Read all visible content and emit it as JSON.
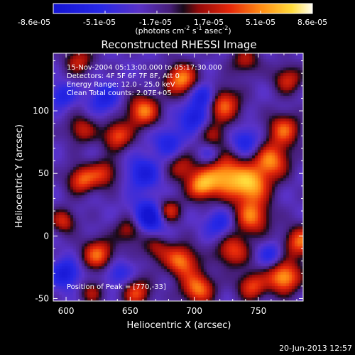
{
  "chart_data": {
    "type": "heatmap",
    "title": "Reconstructed RHESSI Image",
    "xlabel": "Heliocentric X (arcsec)",
    "ylabel": "Heliocentric Y (arcsec)",
    "xlim": [
      590,
      785
    ],
    "ylim": [
      -52,
      146
    ],
    "x_ticks": [
      600,
      650,
      700,
      750
    ],
    "y_ticks": [
      -50,
      0,
      50,
      100
    ],
    "colorbar": {
      "ticks": [
        "-8.6e-05",
        "-5.1e-05",
        "-1.7e-05",
        "1.7e-05",
        "5.1e-05",
        "8.6e-05"
      ],
      "range": [
        -8.6e-05,
        8.6e-05
      ],
      "units": "(photons cm^-2 s^-1 asec^-2)",
      "units_base": "(photons cm",
      "units_exp1": "-2",
      "units_mid": " s",
      "units_exp2": "-1",
      "units_mid2": " asec",
      "units_exp3": "-2",
      "units_end": ")"
    },
    "annotations": [
      "15-Nov-2004 05:13:00.000 to 05:17:30.000",
      "Detectors: 4F 5F 6F 7F 8F, Att 0",
      "Energy Range: 12.0 - 25.0 keV",
      "Clean     Total counts: 2.07E+05"
    ],
    "peak_label": "Position of Peak = [770,-33]",
    "peak_position": [
      770,
      -33
    ],
    "blobs": [
      {
        "x": 770,
        "y": -33,
        "v": 1.0,
        "s": 9
      },
      {
        "x": 783,
        "y": -5,
        "v": 0.8,
        "s": 9
      },
      {
        "x": 745,
        "y": 15,
        "v": 0.8,
        "s": 10
      },
      {
        "x": 724,
        "y": 48,
        "v": 0.95,
        "s": 12
      },
      {
        "x": 745,
        "y": 40,
        "v": 0.85,
        "s": 10
      },
      {
        "x": 705,
        "y": 40,
        "v": 0.8,
        "s": 8
      },
      {
        "x": 690,
        "y": 55,
        "v": 0.5,
        "s": 8
      },
      {
        "x": 760,
        "y": 60,
        "v": 0.85,
        "s": 10
      },
      {
        "x": 770,
        "y": 85,
        "v": 0.75,
        "s": 9
      },
      {
        "x": 722,
        "y": 105,
        "v": 0.8,
        "s": 10
      },
      {
        "x": 715,
        "y": 80,
        "v": 0.4,
        "s": 8
      },
      {
        "x": 690,
        "y": 125,
        "v": 0.9,
        "s": 9
      },
      {
        "x": 660,
        "y": 100,
        "v": 0.85,
        "s": 9
      },
      {
        "x": 640,
        "y": 80,
        "v": 0.75,
        "s": 8
      },
      {
        "x": 612,
        "y": 85,
        "v": 0.55,
        "s": 8
      },
      {
        "x": 612,
        "y": 45,
        "v": 0.75,
        "s": 8
      },
      {
        "x": 630,
        "y": 50,
        "v": 0.6,
        "s": 8
      },
      {
        "x": 598,
        "y": 12,
        "v": 0.6,
        "s": 7
      },
      {
        "x": 625,
        "y": -15,
        "v": 0.8,
        "s": 9
      },
      {
        "x": 650,
        "y": 5,
        "v": 0.55,
        "s": 8
      },
      {
        "x": 670,
        "y": -10,
        "v": 0.45,
        "s": 8
      },
      {
        "x": 690,
        "y": -20,
        "v": 0.85,
        "s": 9
      },
      {
        "x": 703,
        "y": -42,
        "v": 0.85,
        "s": 9
      },
      {
        "x": 730,
        "y": -12,
        "v": 0.7,
        "s": 9
      },
      {
        "x": 745,
        "y": -40,
        "v": 0.7,
        "s": 8
      },
      {
        "x": 655,
        "y": -45,
        "v": 0.7,
        "s": 8
      },
      {
        "x": 620,
        "y": -45,
        "v": 0.45,
        "s": 7
      },
      {
        "x": 680,
        "y": 20,
        "v": 0.7,
        "s": 7
      },
      {
        "x": 773,
        "y": 125,
        "v": 0.6,
        "s": 8
      },
      {
        "x": 740,
        "y": 140,
        "v": 0.5,
        "s": 8
      },
      {
        "x": 610,
        "y": 140,
        "v": 0.55,
        "s": 8
      },
      {
        "x": 708,
        "y": 112,
        "v": -0.75,
        "s": 7
      },
      {
        "x": 665,
        "y": 15,
        "v": -0.85,
        "s": 9
      },
      {
        "x": 660,
        "y": 50,
        "v": -0.55,
        "s": 9
      },
      {
        "x": 700,
        "y": 95,
        "v": -0.6,
        "s": 8
      },
      {
        "x": 740,
        "y": 75,
        "v": -0.5,
        "s": 8
      },
      {
        "x": 630,
        "y": 110,
        "v": -0.5,
        "s": 8
      },
      {
        "x": 600,
        "y": -30,
        "v": -0.6,
        "s": 8
      },
      {
        "x": 720,
        "y": 10,
        "v": -0.45,
        "s": 8
      },
      {
        "x": 760,
        "y": -15,
        "v": -0.4,
        "s": 7
      },
      {
        "x": 640,
        "y": -30,
        "v": -0.4,
        "s": 8
      },
      {
        "x": 712,
        "y": 65,
        "v": -0.35,
        "s": 6
      },
      {
        "x": 680,
        "y": 75,
        "v": -0.45,
        "s": 8
      },
      {
        "x": 597,
        "y": 112,
        "v": -0.45,
        "s": 7
      }
    ]
  },
  "footer": {
    "timestamp": "20-Jun-2013 12:57"
  }
}
